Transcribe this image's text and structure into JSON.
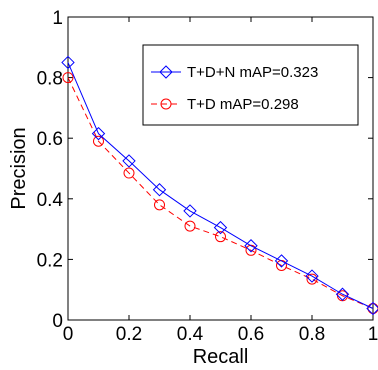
{
  "chart_data": {
    "type": "line",
    "xlabel": "Recall",
    "ylabel": "Precision",
    "xlim": [
      0,
      1
    ],
    "ylim": [
      0,
      1
    ],
    "xticks": [
      "0",
      "0.2",
      "0.4",
      "0.6",
      "0.8",
      "1"
    ],
    "yticks": [
      "0",
      "0.2",
      "0.4",
      "0.6",
      "0.8",
      "1"
    ],
    "grid": false,
    "legend_position": "top-right",
    "x": [
      0,
      0.1,
      0.2,
      0.3,
      0.4,
      0.5,
      0.6,
      0.7,
      0.8,
      0.9,
      1.0
    ],
    "series": [
      {
        "name": "T+D+N mAP=0.323",
        "values": [
          0.85,
          0.615,
          0.525,
          0.43,
          0.36,
          0.305,
          0.245,
          0.195,
          0.145,
          0.085,
          0.038
        ],
        "color": "#0000ff",
        "marker": "diamond",
        "line_style": "solid"
      },
      {
        "name": "T+D mAP=0.298",
        "values": [
          0.8,
          0.59,
          0.485,
          0.38,
          0.31,
          0.275,
          0.23,
          0.18,
          0.135,
          0.08,
          0.038
        ],
        "color": "#ff0000",
        "marker": "circle",
        "line_style": "dashed"
      }
    ]
  }
}
